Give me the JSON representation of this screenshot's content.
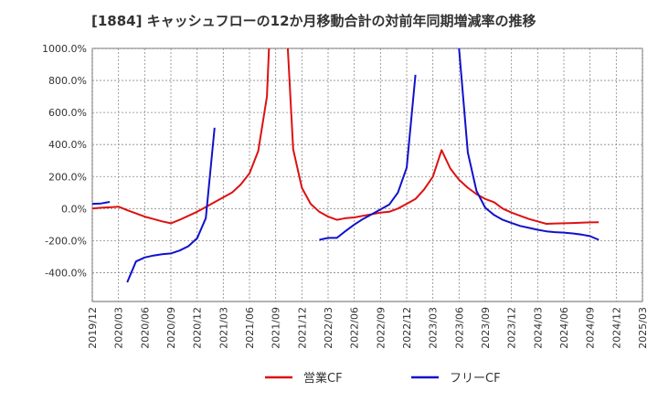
{
  "chart_data": {
    "type": "line",
    "title": "[1884]  キャッシュフローの12か月移動合計の対前年同期増減率の推移",
    "xlabel": "",
    "ylabel": "",
    "ylim": [
      -580,
      1000
    ],
    "y_ticks": [
      1000,
      800,
      600,
      400,
      200,
      0,
      -200,
      -400
    ],
    "y_tick_labels": [
      "1000.0%",
      "800.0%",
      "600.0%",
      "400.0%",
      "200.0%",
      "0.0%",
      "-200.0%",
      "-400.0%"
    ],
    "x_ticks": [
      "2019/12",
      "2020/03",
      "2020/06",
      "2020/09",
      "2020/12",
      "2021/03",
      "2021/06",
      "2021/09",
      "2021/12",
      "2022/03",
      "2022/06",
      "2022/09",
      "2022/12",
      "2023/03",
      "2023/06",
      "2023/09",
      "2023/12",
      "2024/03",
      "2024/06",
      "2024/09",
      "2024/12",
      "2025/03"
    ],
    "grid": true,
    "legend_position": "bottom",
    "series": [
      {
        "name": "営業CF",
        "color": "#dd1111",
        "points": [
          [
            "2019/12",
            0
          ],
          [
            "2020/01",
            5
          ],
          [
            "2020/02",
            8
          ],
          [
            "2020/03",
            12
          ],
          [
            "2020/04",
            -10
          ],
          [
            "2020/05",
            -30
          ],
          [
            "2020/06",
            -50
          ],
          [
            "2020/07",
            -65
          ],
          [
            "2020/08",
            -80
          ],
          [
            "2020/09",
            -92
          ],
          [
            "2020/10",
            -70
          ],
          [
            "2020/11",
            -45
          ],
          [
            "2020/12",
            -20
          ],
          [
            "2021/01",
            10
          ],
          [
            "2021/02",
            40
          ],
          [
            "2021/03",
            70
          ],
          [
            "2021/04",
            100
          ],
          [
            "2021/05",
            150
          ],
          [
            "2021/06",
            220
          ],
          [
            "2021/07",
            360
          ],
          [
            "2021/08",
            700
          ],
          [
            "2021/09",
            2000
          ],
          [
            "2021/10",
            1400
          ],
          [
            "2021/11",
            370
          ],
          [
            "2021/12",
            130
          ],
          [
            "2022/01",
            30
          ],
          [
            "2022/02",
            -20
          ],
          [
            "2022/03",
            -50
          ],
          [
            "2022/04",
            -70
          ],
          [
            "2022/05",
            -60
          ],
          [
            "2022/06",
            -55
          ],
          [
            "2022/07",
            -45
          ],
          [
            "2022/08",
            -35
          ],
          [
            "2022/09",
            -25
          ],
          [
            "2022/10",
            -20
          ],
          [
            "2022/11",
            0
          ],
          [
            "2022/12",
            30
          ],
          [
            "2023/01",
            60
          ],
          [
            "2023/02",
            120
          ],
          [
            "2023/03",
            200
          ],
          [
            "2023/04",
            365
          ],
          [
            "2023/05",
            250
          ],
          [
            "2023/06",
            180
          ],
          [
            "2023/07",
            130
          ],
          [
            "2023/08",
            90
          ],
          [
            "2023/09",
            60
          ],
          [
            "2023/10",
            40
          ],
          [
            "2023/11",
            0
          ],
          [
            "2023/12",
            -25
          ],
          [
            "2024/01",
            -45
          ],
          [
            "2024/02",
            -65
          ],
          [
            "2024/03",
            -80
          ],
          [
            "2024/04",
            -95
          ],
          [
            "2024/05",
            -93
          ],
          [
            "2024/06",
            -92
          ],
          [
            "2024/07",
            -90
          ],
          [
            "2024/08",
            -88
          ],
          [
            "2024/09",
            -86
          ],
          [
            "2024/10",
            -85
          ]
        ]
      },
      {
        "name": "フリーCF",
        "color": "#1111cc",
        "segments": [
          [
            [
              "2019/12",
              30
            ],
            [
              "2020/01",
              32
            ],
            [
              "2020/02",
              42
            ]
          ],
          [
            [
              "2020/04",
              -460
            ],
            [
              "2020/05",
              -330
            ],
            [
              "2020/06",
              -305
            ],
            [
              "2020/07",
              -293
            ],
            [
              "2020/08",
              -285
            ],
            [
              "2020/09",
              -280
            ],
            [
              "2020/10",
              -262
            ],
            [
              "2020/11",
              -235
            ],
            [
              "2020/12",
              -185
            ],
            [
              "2021/01",
              -60
            ],
            [
              "2021/02",
              505
            ]
          ],
          [
            [
              "2022/02",
              -195
            ],
            [
              "2022/03",
              -183
            ],
            [
              "2022/04",
              -183
            ],
            [
              "2022/05",
              -140
            ],
            [
              "2022/06",
              -100
            ],
            [
              "2022/07",
              -65
            ],
            [
              "2022/08",
              -35
            ],
            [
              "2022/09",
              -5
            ],
            [
              "2022/10",
              25
            ],
            [
              "2022/11",
              100
            ],
            [
              "2022/12",
              255
            ],
            [
              "2023/01",
              835
            ]
          ],
          [
            [
              "2023/06",
              1000
            ],
            [
              "2023/07",
              350
            ],
            [
              "2023/08",
              110
            ],
            [
              "2023/09",
              5
            ],
            [
              "2023/10",
              -40
            ],
            [
              "2023/11",
              -70
            ],
            [
              "2023/12",
              -90
            ],
            [
              "2024/01",
              -108
            ],
            [
              "2024/02",
              -120
            ],
            [
              "2024/03",
              -132
            ],
            [
              "2024/04",
              -142
            ],
            [
              "2024/05",
              -147
            ],
            [
              "2024/06",
              -150
            ],
            [
              "2024/07",
              -155
            ],
            [
              "2024/08",
              -162
            ],
            [
              "2024/09",
              -172
            ],
            [
              "2024/10",
              -195
            ]
          ]
        ]
      }
    ]
  }
}
